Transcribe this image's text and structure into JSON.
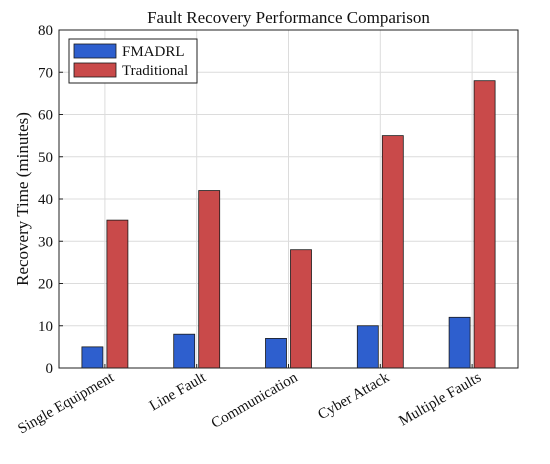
{
  "chart_data": {
    "type": "bar",
    "title": "Fault Recovery Performance Comparison",
    "xlabel": "",
    "ylabel": "Recovery Time (minutes)",
    "categories": [
      "Single Equipment",
      "Line Fault",
      "Communication",
      "Cyber Attack",
      "Multiple Faults"
    ],
    "series": [
      {
        "name": "FMADRL",
        "values": [
          5,
          8,
          7,
          10,
          12
        ],
        "color": "#2e5fce"
      },
      {
        "name": "Traditional",
        "values": [
          35,
          42,
          28,
          55,
          68
        ],
        "color": "#c94a4a"
      }
    ],
    "ylim": [
      0,
      80
    ],
    "yticks": [
      0,
      10,
      20,
      30,
      40,
      50,
      60,
      70,
      80
    ],
    "grid": true,
    "legend_position": "top-left"
  }
}
